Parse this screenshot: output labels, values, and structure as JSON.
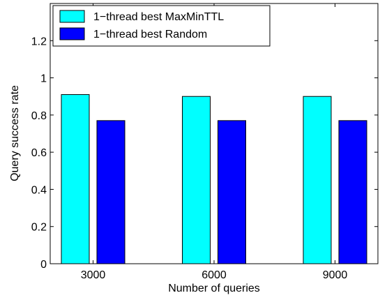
{
  "chart_data": {
    "type": "bar",
    "categories": [
      "3000",
      "6000",
      "9000"
    ],
    "series": [
      {
        "name": "1−thread best MaxMinTTL",
        "values": [
          0.91,
          0.9,
          0.9
        ],
        "color": "#00ffff"
      },
      {
        "name": "1−thread best Random",
        "values": [
          0.77,
          0.77,
          0.77
        ],
        "color": "#0000ff"
      }
    ],
    "xlabel": "Number of queries",
    "ylabel": "Query success rate",
    "ylim": [
      0,
      1.4
    ],
    "yticks": [
      "0",
      "0.2",
      "0.4",
      "0.6",
      "0.8",
      "1",
      "1.2"
    ],
    "grid": false,
    "legend_position": "top-left"
  }
}
